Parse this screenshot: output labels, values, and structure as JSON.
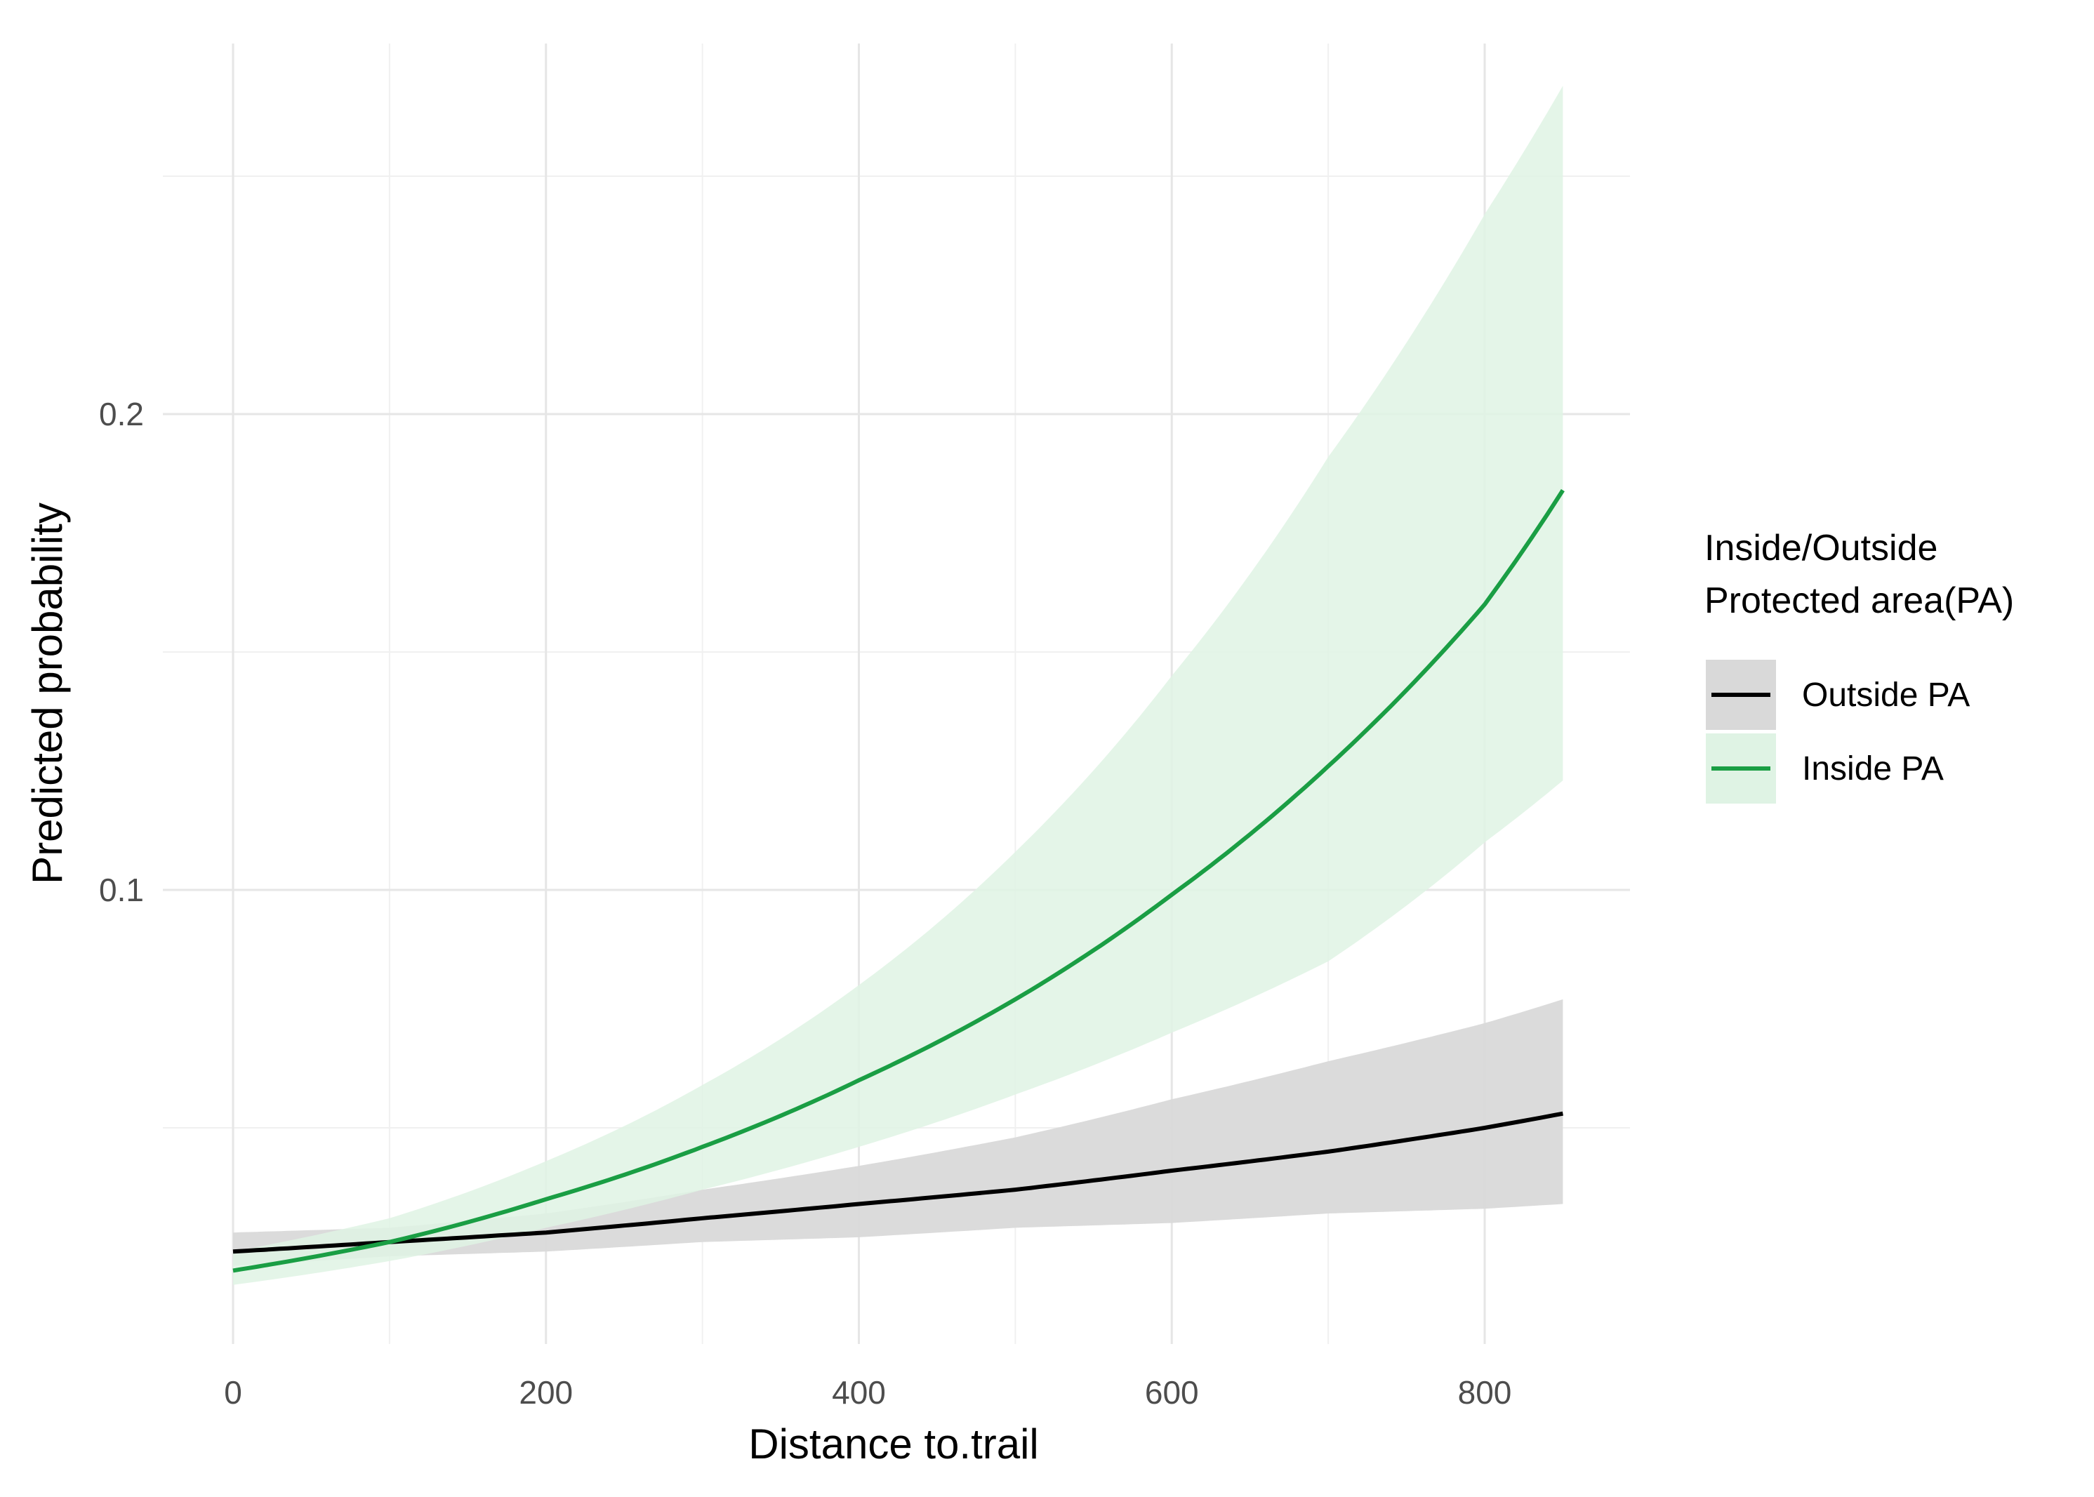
{
  "chart_data": {
    "type": "line",
    "title": "",
    "xlabel": "Distance to.trail",
    "ylabel": "Predicted probability",
    "xlim": [
      0,
      850
    ],
    "ylim": [
      0,
      0.3
    ],
    "x_ticks": [
      "0",
      "200",
      "400",
      "600",
      "800"
    ],
    "x_tick_values": [
      0,
      200,
      400,
      600,
      800
    ],
    "y_ticks": [
      "0.1",
      "0.2"
    ],
    "y_tick_values": [
      0.1,
      0.2
    ],
    "grid": true,
    "legend": {
      "title": "Inside/Outside\nProtected area(PA)",
      "title_lines": [
        "Inside/Outside",
        "Protected area(PA)"
      ],
      "position": "right"
    },
    "x": [
      0,
      100,
      200,
      300,
      400,
      500,
      600,
      700,
      800,
      850
    ],
    "series": [
      {
        "name": "Outside PA",
        "color": "#000000",
        "band_color": "#d9d9d9",
        "values": [
          0.024,
          0.026,
          0.028,
          0.031,
          0.034,
          0.037,
          0.041,
          0.045,
          0.05,
          0.053
        ],
        "lower": [
          0.021,
          0.023,
          0.024,
          0.026,
          0.027,
          0.029,
          0.03,
          0.032,
          0.033,
          0.034
        ],
        "upper": [
          0.028,
          0.029,
          0.032,
          0.037,
          0.042,
          0.048,
          0.056,
          0.064,
          0.072,
          0.077
        ]
      },
      {
        "name": "Inside PA",
        "color": "#1a9e44",
        "band_color": "#dff3e4",
        "values": [
          0.02,
          0.026,
          0.035,
          0.046,
          0.06,
          0.077,
          0.099,
          0.126,
          0.16,
          0.184
        ],
        "lower": [
          0.017,
          0.022,
          0.029,
          0.037,
          0.046,
          0.057,
          0.07,
          0.085,
          0.11,
          0.123
        ],
        "upper": [
          0.024,
          0.031,
          0.043,
          0.059,
          0.08,
          0.108,
          0.145,
          0.191,
          0.242,
          0.269
        ]
      }
    ]
  }
}
